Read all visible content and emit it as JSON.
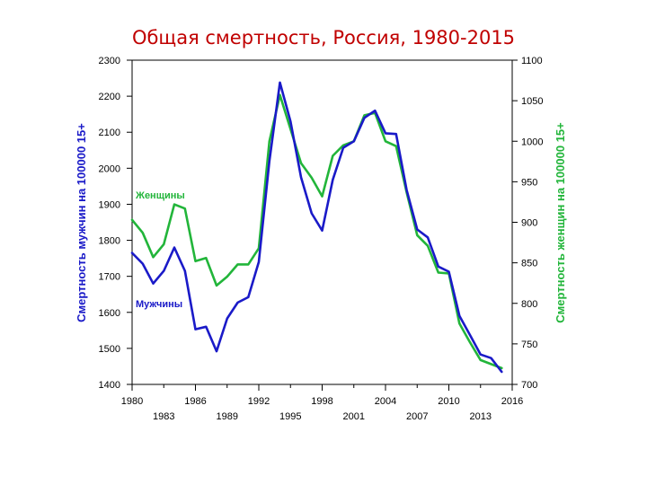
{
  "chart_data": {
    "type": "line",
    "title": "Общая смертность, Россия, 1980-2015",
    "x_ticks_major": [
      1980,
      1986,
      1992,
      1998,
      2004,
      2010,
      2016
    ],
    "x_ticks_minor": [
      1983,
      1989,
      1995,
      2001,
      2007,
      2013
    ],
    "xlim": [
      1980,
      2016
    ],
    "y_left": {
      "label": "Смертность мужчин на 100000 15+",
      "range": [
        1400,
        2300
      ],
      "ticks": [
        1400,
        1500,
        1600,
        1700,
        1800,
        1900,
        2000,
        2100,
        2200,
        2300
      ],
      "color": "#1a1ac8"
    },
    "y_right": {
      "label": "Смертность женщин на 100000 15+",
      "range": [
        700,
        1100
      ],
      "ticks": [
        700,
        750,
        800,
        850,
        900,
        950,
        1000,
        1050,
        1100
      ],
      "color": "#22b53a"
    },
    "series": [
      {
        "name": "Мужчины",
        "axis": "left",
        "color": "#1a1ac8",
        "x": [
          1980,
          1981,
          1982,
          1983,
          1984,
          1985,
          1986,
          1987,
          1988,
          1989,
          1990,
          1991,
          1992,
          1993,
          1994,
          1995,
          1996,
          1997,
          1998,
          1999,
          2000,
          2001,
          2002,
          2003,
          2004,
          2005,
          2006,
          2007,
          2008,
          2009,
          2010,
          2011,
          2012,
          2013,
          2014,
          2015
        ],
        "y": [
          1765,
          1735,
          1680,
          1715,
          1780,
          1715,
          1553,
          1560,
          1492,
          1583,
          1627,
          1642,
          1740,
          2020,
          2238,
          2130,
          1975,
          1875,
          1827,
          1968,
          2057,
          2075,
          2140,
          2160,
          2097,
          2095,
          1940,
          1830,
          1808,
          1727,
          1713,
          1590,
          1537,
          1483,
          1473,
          1435
        ]
      },
      {
        "name": "Женщины",
        "axis": "right",
        "color": "#22b53a",
        "x": [
          1980,
          1981,
          1982,
          1983,
          1984,
          1985,
          1986,
          1987,
          1988,
          1989,
          1990,
          1991,
          1992,
          1993,
          1994,
          1995,
          1996,
          1997,
          1998,
          1999,
          2000,
          2001,
          2002,
          2003,
          2004,
          2005,
          2006,
          2007,
          2008,
          2009,
          2010,
          2011,
          2012,
          2013,
          2014,
          2015
        ],
        "y": [
          903,
          887,
          857,
          873,
          922,
          917,
          852,
          856,
          822,
          833,
          848,
          848,
          868,
          1000,
          1057,
          1015,
          973,
          955,
          932,
          982,
          995,
          1000,
          1032,
          1035,
          1000,
          994,
          937,
          884,
          871,
          838,
          837,
          775,
          752,
          730,
          725,
          720
        ]
      }
    ]
  }
}
